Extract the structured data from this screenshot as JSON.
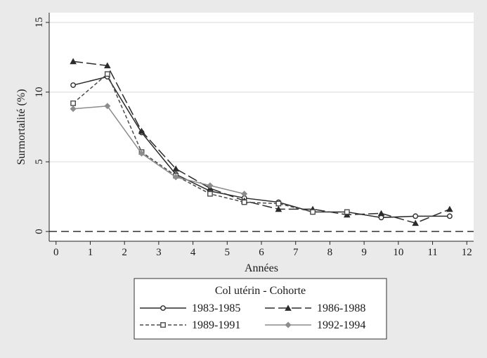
{
  "chart_data": {
    "type": "line",
    "title": "",
    "xlabel": "Années",
    "ylabel": "Surmortalité (%)",
    "xlim": [
      -0.2,
      12.2
    ],
    "ylim": [
      -0.7,
      15.7
    ],
    "xticks": [
      0,
      1,
      2,
      3,
      4,
      5,
      6,
      7,
      8,
      9,
      10,
      11,
      12
    ],
    "yticks": [
      0,
      5,
      10,
      15
    ],
    "grid": "horizontal",
    "reference_line": {
      "y": 0,
      "style": "dashed"
    },
    "legend": {
      "title": "Col utérin - Cohorte",
      "placement": "bottom"
    },
    "series": [
      {
        "name": "1983-1985",
        "marker": "circle",
        "line": "solid",
        "color": "#2b2b2b",
        "x": [
          0.5,
          1.5,
          2.5,
          3.5,
          4.5,
          5.5,
          6.5,
          7.5,
          8.5,
          9.5,
          10.5,
          11.5
        ],
        "y": [
          10.5,
          11.1,
          7.1,
          4.1,
          2.9,
          2.4,
          2.1,
          1.4,
          1.4,
          1.0,
          1.1,
          1.1
        ]
      },
      {
        "name": "1986-1988",
        "marker": "triangle",
        "line": "longdash",
        "color": "#2b2b2b",
        "x": [
          0.5,
          1.5,
          2.5,
          3.5,
          4.5,
          5.5,
          6.5,
          7.5,
          8.5,
          9.5,
          10.5,
          11.5
        ],
        "y": [
          12.2,
          11.9,
          7.2,
          4.5,
          3.1,
          2.2,
          1.6,
          1.6,
          1.2,
          1.3,
          0.6,
          1.6
        ]
      },
      {
        "name": "1989-1991",
        "marker": "square",
        "line": "shortdash",
        "color": "#4a4a4a",
        "x": [
          0.5,
          1.5,
          2.5,
          3.5,
          4.5,
          5.5,
          6.5,
          7.5,
          8.5
        ],
        "y": [
          9.2,
          11.3,
          5.7,
          4.0,
          2.7,
          2.1,
          2.0,
          1.4,
          1.4
        ]
      },
      {
        "name": "1992-1994",
        "marker": "diamond",
        "line": "solid",
        "color": "#8c8c8c",
        "x": [
          0.5,
          1.5,
          2.5,
          3.5,
          4.5,
          5.5
        ],
        "y": [
          8.8,
          9.0,
          5.6,
          3.9,
          3.3,
          2.7
        ]
      }
    ]
  }
}
